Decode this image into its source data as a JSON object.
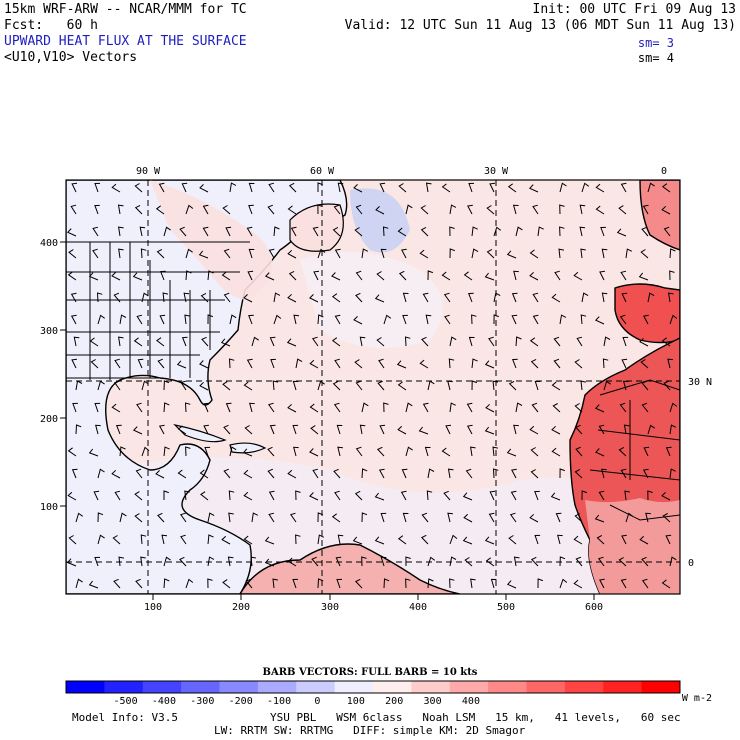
{
  "header": {
    "model": "15km WRF-ARW -- NCAR/MMM for TC",
    "init": "Init: 00 UTC Fri 09 Aug 13",
    "forecast": "Fcst:   60 h",
    "valid": "Valid: 12 UTC Sun 11 Aug 13 (06 MDT Sun 11 Aug 13)",
    "field": "UPWARD HEAT FLUX AT THE SURFACE",
    "vectors": "<U10,V10> Vectors",
    "sm1": "sm= 3",
    "sm2": "sm= 4"
  },
  "map": {
    "top_lon_labels": [
      "90 W",
      "60 W",
      "30 W",
      "0"
    ],
    "right_lat_labels": [
      "30 N",
      "0"
    ],
    "x_ticks": [
      "100",
      "200",
      "300",
      "400",
      "500",
      "600"
    ],
    "y_ticks": [
      "100",
      "200",
      "300",
      "400"
    ]
  },
  "legend": {
    "barb_title": "BARB VECTORS:  FULL BARB = 10 kts",
    "labels": [
      "-500",
      "-400",
      "-300",
      "-200",
      "-100",
      "0",
      "100",
      "200",
      "300",
      "400"
    ],
    "units": "W m-2",
    "colors": [
      "#0000ff",
      "#2222ff",
      "#4444ff",
      "#6666ff",
      "#8888ff",
      "#aaaaff",
      "#ccccff",
      "#eeeeff",
      "#ffeeee",
      "#ffcccc",
      "#ffaaaa",
      "#ff8888",
      "#ff6666",
      "#ff4444",
      "#ff2222",
      "#ff0000"
    ]
  },
  "footer": {
    "model_info": "Model Info: V3.5",
    "line1": "YSU PBL   WSM 6class   Noah LSM   15 km,   41 levels,   60 sec",
    "line2": "LW: RRTM SW: RRTMG   DIFF: simple KM: 2D Smagor"
  }
}
